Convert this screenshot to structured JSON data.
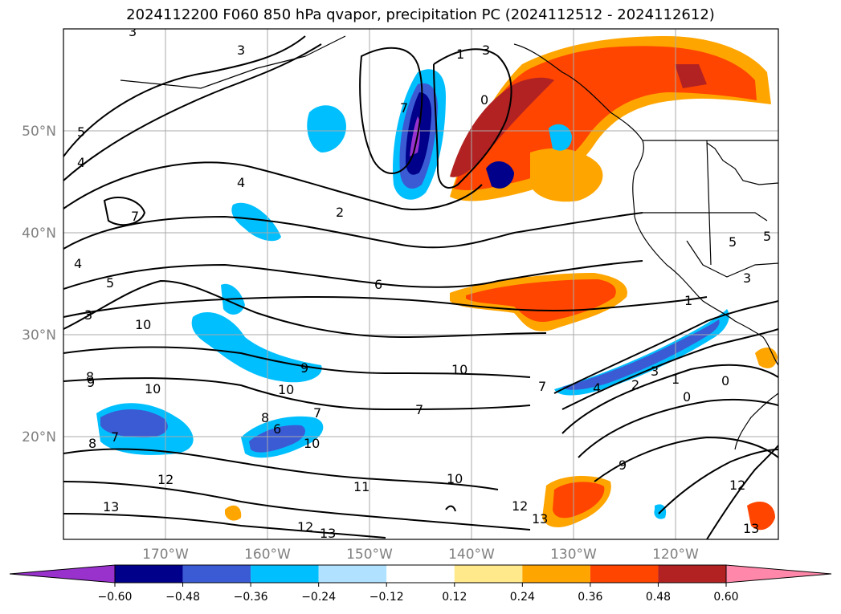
{
  "title": "2024112200 F060 850 hPa qvapor, precipitation PC (2024112512 - 2024112612)",
  "latitude_labels": [
    "50°N",
    "40°N",
    "30°N",
    "20°N"
  ],
  "longitude_labels": [
    "170°W",
    "160°W",
    "150°W",
    "140°W",
    "130°W",
    "120°W"
  ],
  "contour_labels": [
    "3",
    "3",
    "5",
    "4",
    "7",
    "4",
    "5",
    "3",
    "4",
    "10",
    "8",
    "9",
    "10",
    "8",
    "7",
    "12",
    "13",
    "2",
    "7",
    "1",
    "0",
    "3",
    "6",
    "9",
    "10",
    "8",
    "6",
    "7",
    "10",
    "7",
    "10",
    "11",
    "10",
    "12",
    "13",
    "12",
    "13",
    "1",
    "7",
    "4",
    "2",
    "3",
    "1",
    "0",
    "0",
    "5",
    "3",
    "5",
    "9",
    "12",
    "13"
  ],
  "colorbar": {
    "colors": [
      "#9932cc",
      "#00008b",
      "#3a5bd4",
      "#00bfff",
      "#b0e2ff",
      "#ffffff",
      "#ffe98a",
      "#ffa500",
      "#ff4500",
      "#b22222",
      "#ff88aa"
    ],
    "tick_labels": [
      "−0.60",
      "−0.48",
      "−0.36",
      "−0.24",
      "−0.12",
      "0.12",
      "0.24",
      "0.36",
      "0.48",
      "0.60"
    ]
  },
  "colors": {
    "land_outline": "#000000",
    "grid": "#aaaaaa"
  }
}
